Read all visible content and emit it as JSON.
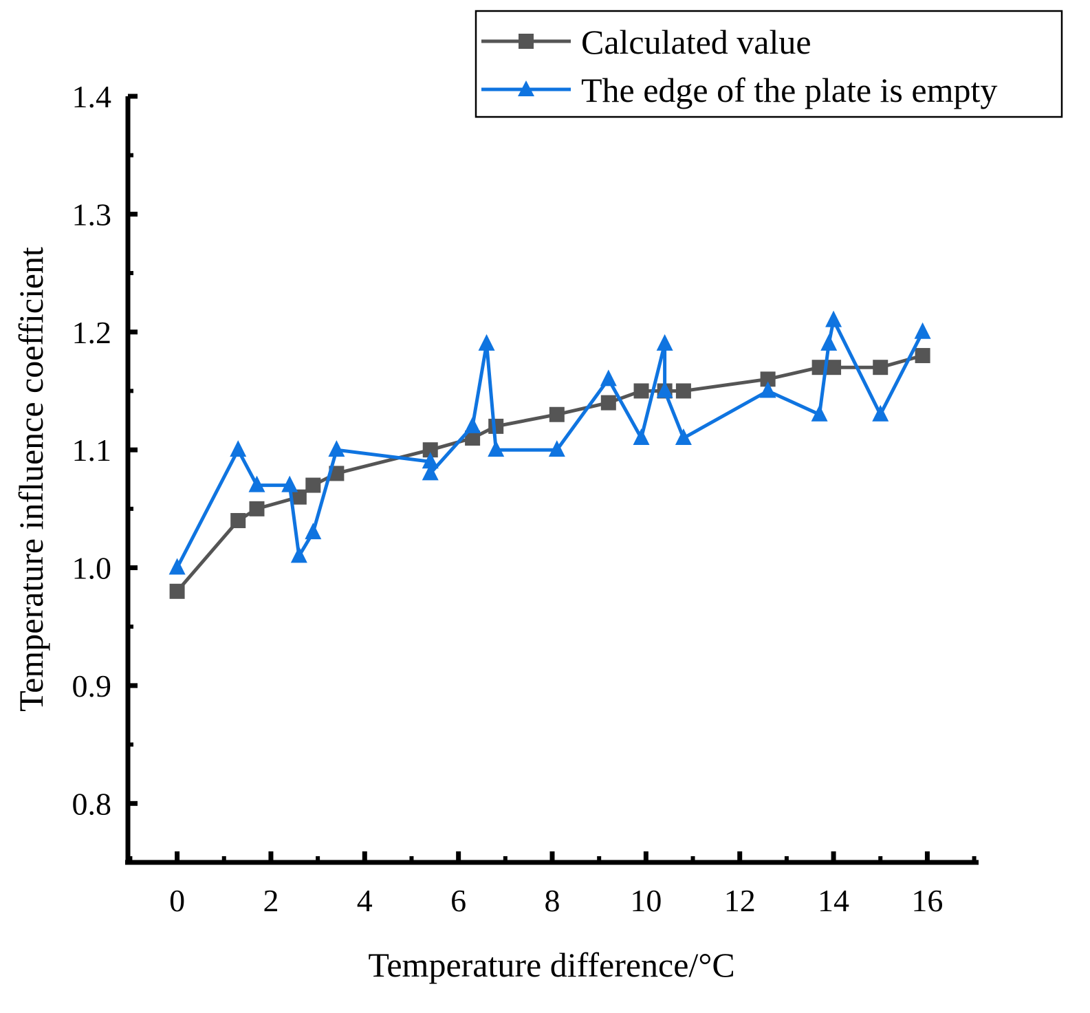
{
  "chart_data": {
    "type": "line",
    "title": "",
    "xlabel": "Temperature difference/°C",
    "ylabel": "Temperature influence coefficient",
    "xlim": [
      -1.05,
      17.05
    ],
    "ylim": [
      0.75,
      1.4
    ],
    "xticks": [
      0,
      2,
      4,
      6,
      8,
      10,
      12,
      14,
      16
    ],
    "yticks": [
      0.8,
      0.9,
      1.0,
      1.1,
      1.2,
      1.3,
      1.4
    ],
    "xtick_labels": [
      "0",
      "2",
      "4",
      "6",
      "8",
      "10",
      "12",
      "14",
      "16"
    ],
    "ytick_labels": [
      "0.8",
      "0.9",
      "1.0",
      "1.1",
      "1.2",
      "1.3",
      "1.4"
    ],
    "legend_position": "top-right",
    "grid": false,
    "series": [
      {
        "name": "Calculated value",
        "color": "#555555",
        "marker": "square",
        "x": [
          0,
          1.3,
          1.7,
          2.6,
          2.9,
          3.4,
          5.4,
          6.3,
          6.8,
          8.1,
          9.2,
          9.9,
          10.4,
          10.8,
          12.6,
          13.7,
          14.0,
          15.0,
          15.9
        ],
        "y": [
          0.98,
          1.04,
          1.05,
          1.06,
          1.07,
          1.08,
          1.1,
          1.11,
          1.12,
          1.13,
          1.14,
          1.15,
          1.15,
          1.15,
          1.16,
          1.17,
          1.17,
          1.17,
          1.18
        ]
      },
      {
        "name": "The edge of the plate is empty",
        "color": "#0f74e0",
        "marker": "triangle",
        "x": [
          0,
          1.3,
          1.7,
          2.4,
          2.6,
          2.9,
          3.4,
          5.4,
          5.4,
          6.3,
          6.6,
          6.8,
          8.1,
          9.2,
          9.9,
          10.4,
          10.4,
          10.8,
          12.6,
          13.7,
          13.9,
          14.0,
          15.0,
          15.9
        ],
        "y": [
          1.0,
          1.1,
          1.07,
          1.07,
          1.01,
          1.03,
          1.1,
          1.09,
          1.08,
          1.12,
          1.19,
          1.1,
          1.1,
          1.16,
          1.11,
          1.19,
          1.15,
          1.11,
          1.15,
          1.13,
          1.19,
          1.21,
          1.13,
          1.2
        ]
      }
    ]
  }
}
